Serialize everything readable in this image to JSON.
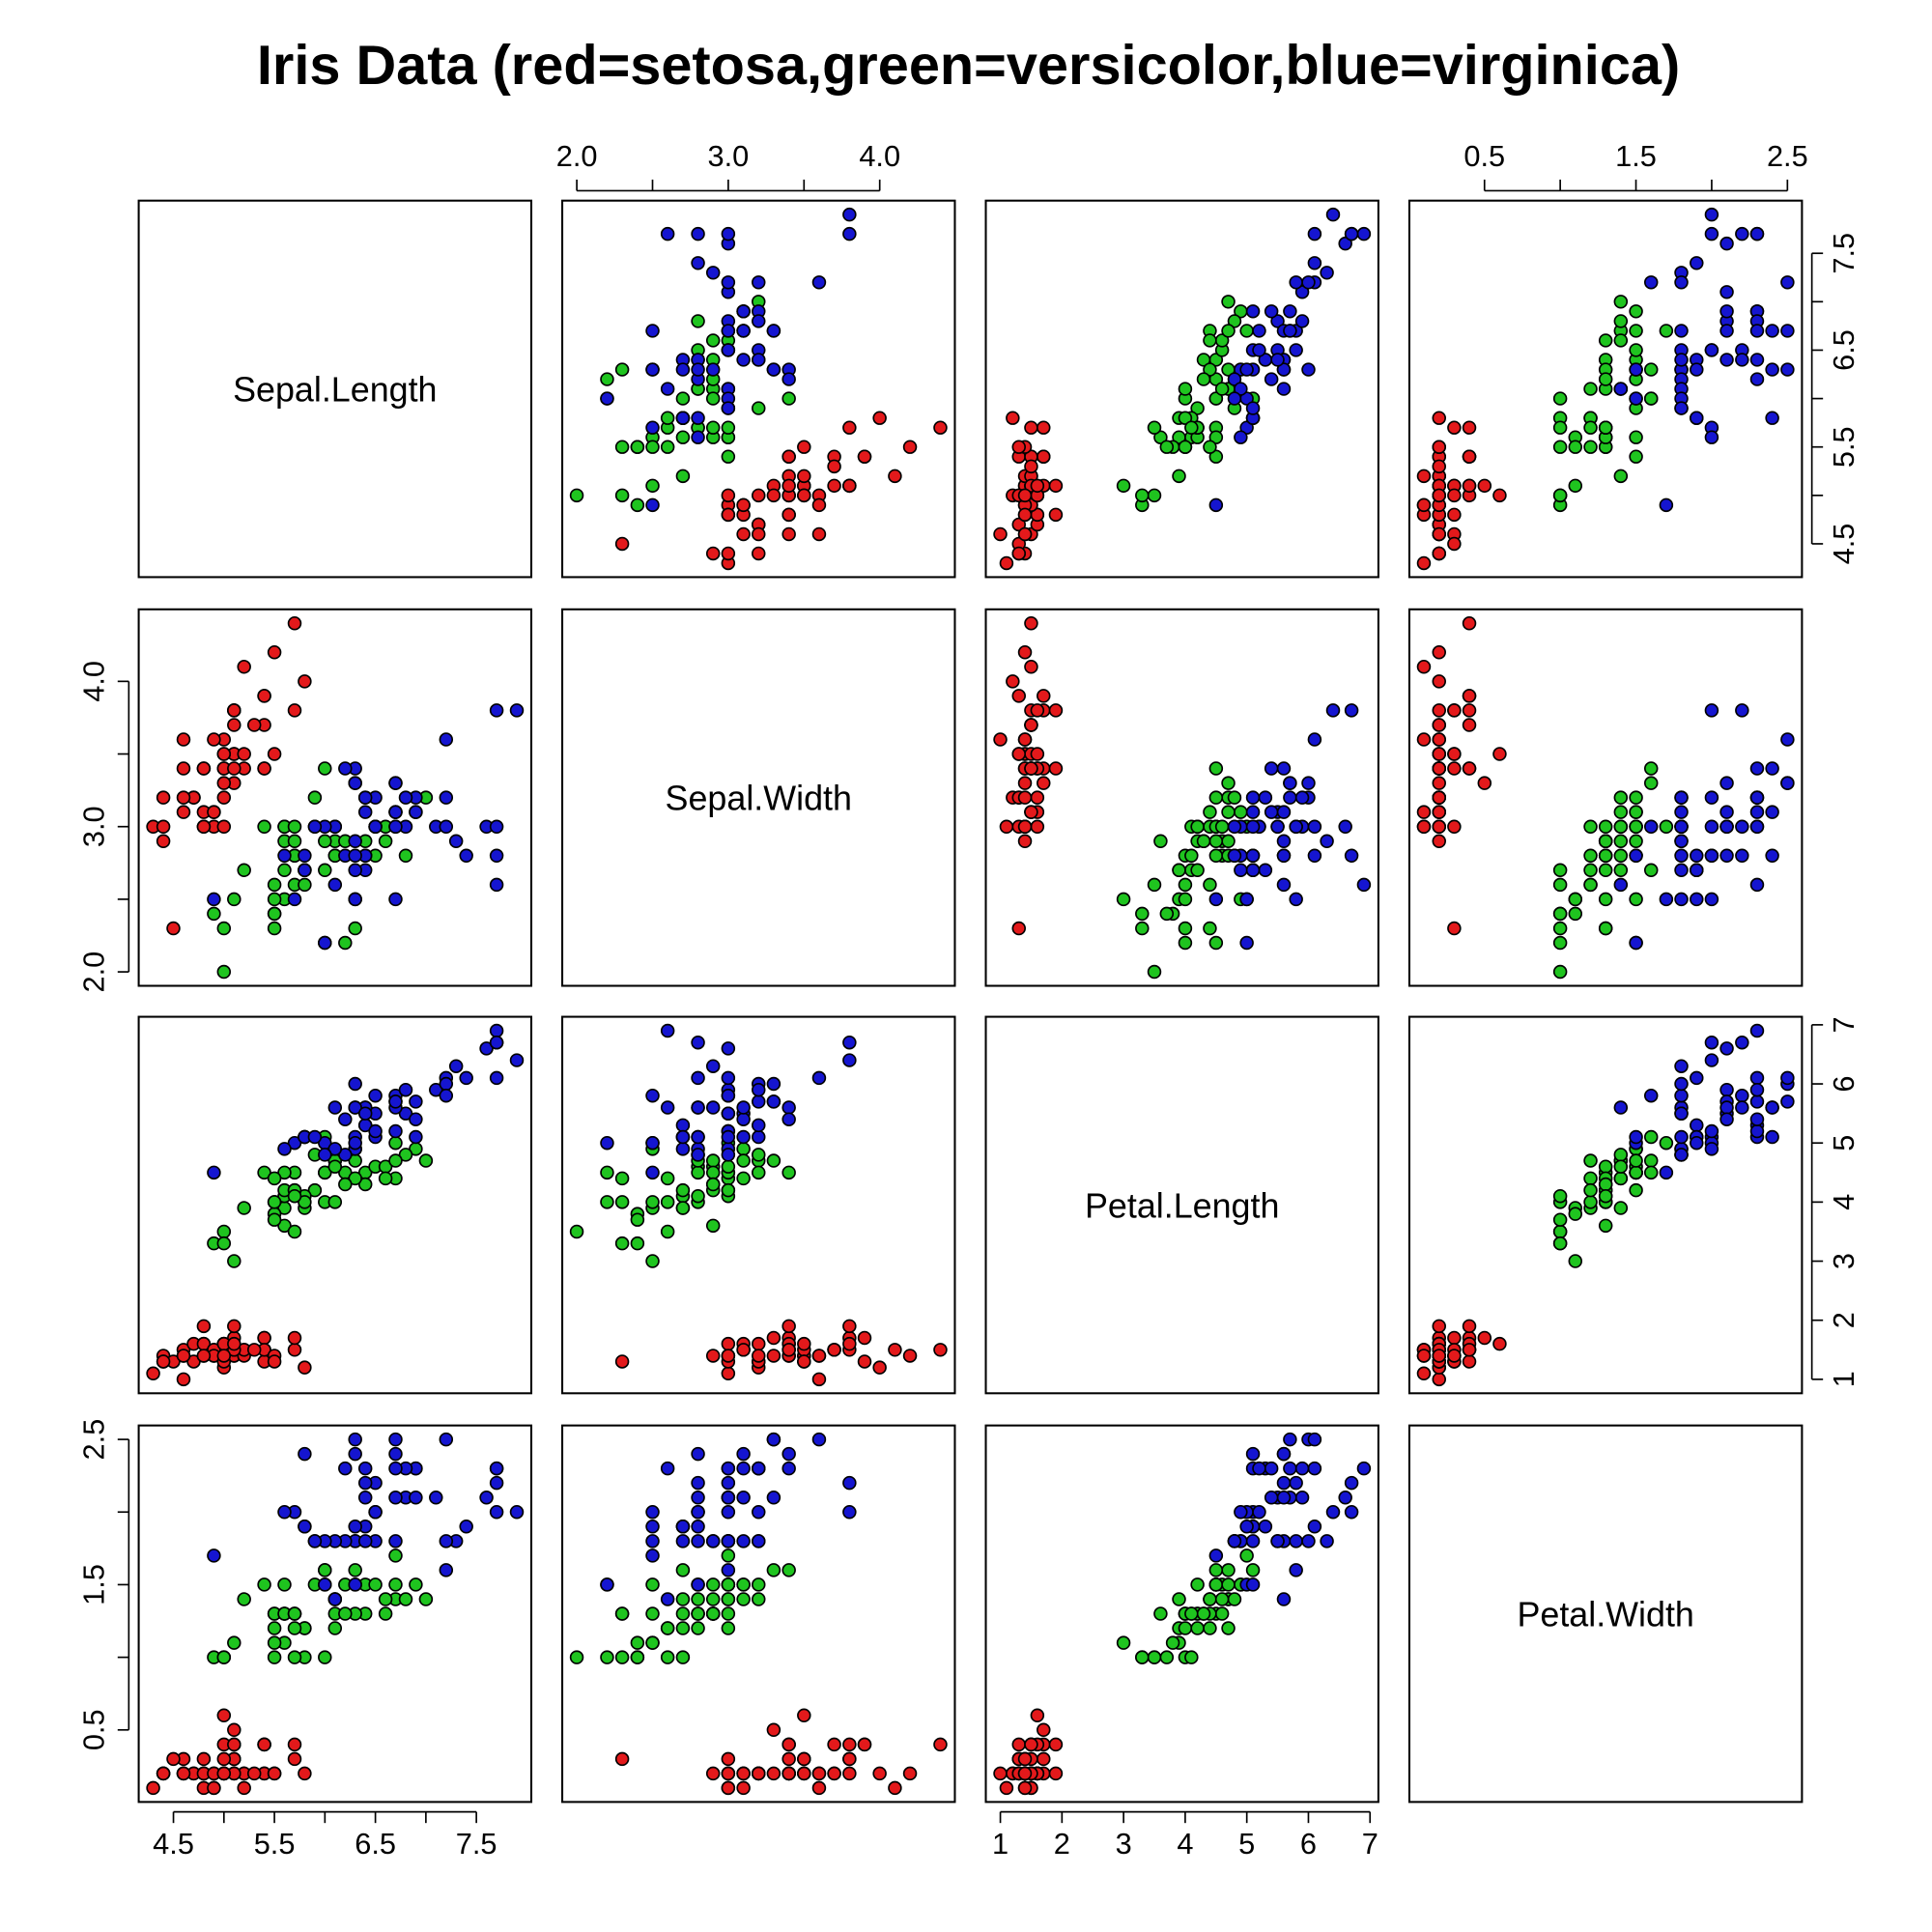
{
  "chart_data": {
    "type": "scatter",
    "subtype": "scatterplot-matrix",
    "title": "Iris Data (red=setosa,green=versicolor,blue=virginica)",
    "grid": false,
    "variables": [
      {
        "name": "Sepal.Length",
        "range": [
          4.3,
          7.9
        ],
        "ticks": [
          4.5,
          5.0,
          5.5,
          6.0,
          6.5,
          7.0,
          7.5
        ],
        "tick_labels": [
          "4.5",
          "5.5",
          "6.5",
          "7.5"
        ]
      },
      {
        "name": "Sepal.Width",
        "range": [
          2.0,
          4.4
        ],
        "ticks": [
          2.0,
          2.5,
          3.0,
          3.5,
          4.0
        ],
        "tick_labels": [
          "2.0",
          "3.0",
          "4.0"
        ]
      },
      {
        "name": "Petal.Length",
        "range": [
          1.0,
          6.9
        ],
        "ticks": [
          1,
          2,
          3,
          4,
          5,
          6,
          7
        ],
        "tick_labels": [
          "1",
          "2",
          "3",
          "4",
          "5",
          "6",
          "7"
        ]
      },
      {
        "name": "Petal.Width",
        "range": [
          0.1,
          2.5
        ],
        "ticks": [
          0.5,
          1.0,
          1.5,
          2.0,
          2.5
        ],
        "tick_labels": [
          "0.5",
          "1.5",
          "2.5"
        ]
      }
    ],
    "series": [
      {
        "name": "setosa",
        "color": "#e3191b",
        "points": [
          [
            5.1,
            3.5,
            1.4,
            0.2
          ],
          [
            4.9,
            3.0,
            1.4,
            0.2
          ],
          [
            4.7,
            3.2,
            1.3,
            0.2
          ],
          [
            4.6,
            3.1,
            1.5,
            0.2
          ],
          [
            5.0,
            3.6,
            1.4,
            0.2
          ],
          [
            5.4,
            3.9,
            1.7,
            0.4
          ],
          [
            4.6,
            3.4,
            1.4,
            0.3
          ],
          [
            5.0,
            3.4,
            1.5,
            0.2
          ],
          [
            4.4,
            2.9,
            1.4,
            0.2
          ],
          [
            4.9,
            3.1,
            1.5,
            0.1
          ],
          [
            5.4,
            3.7,
            1.5,
            0.2
          ],
          [
            4.8,
            3.4,
            1.6,
            0.2
          ],
          [
            4.8,
            3.0,
            1.4,
            0.1
          ],
          [
            4.3,
            3.0,
            1.1,
            0.1
          ],
          [
            5.8,
            4.0,
            1.2,
            0.2
          ],
          [
            5.7,
            4.4,
            1.5,
            0.4
          ],
          [
            5.4,
            3.9,
            1.3,
            0.4
          ],
          [
            5.1,
            3.5,
            1.4,
            0.3
          ],
          [
            5.7,
            3.8,
            1.7,
            0.3
          ],
          [
            5.1,
            3.8,
            1.5,
            0.3
          ],
          [
            5.4,
            3.4,
            1.7,
            0.2
          ],
          [
            5.1,
            3.7,
            1.5,
            0.4
          ],
          [
            4.6,
            3.6,
            1.0,
            0.2
          ],
          [
            5.1,
            3.3,
            1.7,
            0.5
          ],
          [
            4.8,
            3.4,
            1.9,
            0.2
          ],
          [
            5.0,
            3.0,
            1.6,
            0.2
          ],
          [
            5.0,
            3.4,
            1.6,
            0.4
          ],
          [
            5.2,
            3.5,
            1.5,
            0.2
          ],
          [
            5.2,
            3.4,
            1.4,
            0.2
          ],
          [
            4.7,
            3.2,
            1.6,
            0.2
          ],
          [
            4.8,
            3.1,
            1.6,
            0.2
          ],
          [
            5.4,
            3.4,
            1.5,
            0.4
          ],
          [
            5.2,
            4.1,
            1.5,
            0.1
          ],
          [
            5.5,
            4.2,
            1.4,
            0.2
          ],
          [
            4.9,
            3.1,
            1.5,
            0.2
          ],
          [
            5.0,
            3.2,
            1.2,
            0.2
          ],
          [
            5.5,
            3.5,
            1.3,
            0.2
          ],
          [
            4.9,
            3.6,
            1.4,
            0.1
          ],
          [
            4.4,
            3.0,
            1.3,
            0.2
          ],
          [
            5.1,
            3.4,
            1.5,
            0.2
          ],
          [
            5.0,
            3.5,
            1.3,
            0.3
          ],
          [
            4.5,
            2.3,
            1.3,
            0.3
          ],
          [
            4.4,
            3.2,
            1.3,
            0.2
          ],
          [
            5.0,
            3.5,
            1.6,
            0.6
          ],
          [
            5.1,
            3.8,
            1.9,
            0.4
          ],
          [
            4.8,
            3.0,
            1.4,
            0.3
          ],
          [
            5.1,
            3.8,
            1.6,
            0.2
          ],
          [
            4.6,
            3.2,
            1.4,
            0.2
          ],
          [
            5.3,
            3.7,
            1.5,
            0.2
          ],
          [
            5.0,
            3.3,
            1.4,
            0.2
          ]
        ]
      },
      {
        "name": "versicolor",
        "color": "#1fc41f",
        "points": [
          [
            7.0,
            3.2,
            4.7,
            1.4
          ],
          [
            6.4,
            3.2,
            4.5,
            1.5
          ],
          [
            6.9,
            3.1,
            4.9,
            1.5
          ],
          [
            5.5,
            2.3,
            4.0,
            1.3
          ],
          [
            6.5,
            2.8,
            4.6,
            1.5
          ],
          [
            5.7,
            2.8,
            4.5,
            1.3
          ],
          [
            6.3,
            3.3,
            4.7,
            1.6
          ],
          [
            4.9,
            2.4,
            3.3,
            1.0
          ],
          [
            6.6,
            2.9,
            4.6,
            1.3
          ],
          [
            5.2,
            2.7,
            3.9,
            1.4
          ],
          [
            5.0,
            2.0,
            3.5,
            1.0
          ],
          [
            5.9,
            3.0,
            4.2,
            1.5
          ],
          [
            6.0,
            2.2,
            4.0,
            1.0
          ],
          [
            6.1,
            2.9,
            4.7,
            1.4
          ],
          [
            5.6,
            2.9,
            3.6,
            1.3
          ],
          [
            6.7,
            3.1,
            4.4,
            1.4
          ],
          [
            5.6,
            3.0,
            4.5,
            1.5
          ],
          [
            5.8,
            2.7,
            4.1,
            1.0
          ],
          [
            6.2,
            2.2,
            4.5,
            1.5
          ],
          [
            5.6,
            2.5,
            3.9,
            1.1
          ],
          [
            5.9,
            3.2,
            4.8,
            1.8
          ],
          [
            6.1,
            2.8,
            4.0,
            1.3
          ],
          [
            6.3,
            2.5,
            4.9,
            1.5
          ],
          [
            6.1,
            2.8,
            4.7,
            1.2
          ],
          [
            6.4,
            2.9,
            4.3,
            1.3
          ],
          [
            6.6,
            3.0,
            4.4,
            1.4
          ],
          [
            6.8,
            2.8,
            4.8,
            1.4
          ],
          [
            6.7,
            3.0,
            5.0,
            1.7
          ],
          [
            6.0,
            2.9,
            4.5,
            1.5
          ],
          [
            5.7,
            2.6,
            3.5,
            1.0
          ],
          [
            5.5,
            2.4,
            3.8,
            1.1
          ],
          [
            5.5,
            2.4,
            3.7,
            1.0
          ],
          [
            5.8,
            2.7,
            3.9,
            1.2
          ],
          [
            6.0,
            2.7,
            5.1,
            1.6
          ],
          [
            5.4,
            3.0,
            4.5,
            1.5
          ],
          [
            6.0,
            3.4,
            4.5,
            1.6
          ],
          [
            6.7,
            3.1,
            4.7,
            1.5
          ],
          [
            6.3,
            2.3,
            4.4,
            1.3
          ],
          [
            5.6,
            3.0,
            4.1,
            1.3
          ],
          [
            5.5,
            2.5,
            4.0,
            1.3
          ],
          [
            5.5,
            2.6,
            4.4,
            1.2
          ],
          [
            6.1,
            3.0,
            4.6,
            1.4
          ],
          [
            5.8,
            2.6,
            4.0,
            1.2
          ],
          [
            5.0,
            2.3,
            3.3,
            1.0
          ],
          [
            5.6,
            2.7,
            4.2,
            1.3
          ],
          [
            5.7,
            3.0,
            4.2,
            1.2
          ],
          [
            5.7,
            2.9,
            4.2,
            1.3
          ],
          [
            6.2,
            2.9,
            4.3,
            1.3
          ],
          [
            5.1,
            2.5,
            3.0,
            1.1
          ],
          [
            5.7,
            2.8,
            4.1,
            1.3
          ]
        ]
      },
      {
        "name": "virginica",
        "color": "#1515d0",
        "points": [
          [
            6.3,
            3.3,
            6.0,
            2.5
          ],
          [
            5.8,
            2.7,
            5.1,
            1.9
          ],
          [
            7.1,
            3.0,
            5.9,
            2.1
          ],
          [
            6.3,
            2.9,
            5.6,
            1.8
          ],
          [
            6.5,
            3.0,
            5.8,
            2.2
          ],
          [
            7.6,
            3.0,
            6.6,
            2.1
          ],
          [
            4.9,
            2.5,
            4.5,
            1.7
          ],
          [
            7.3,
            2.9,
            6.3,
            1.8
          ],
          [
            6.7,
            2.5,
            5.8,
            1.8
          ],
          [
            7.2,
            3.6,
            6.1,
            2.5
          ],
          [
            6.5,
            3.2,
            5.1,
            2.0
          ],
          [
            6.4,
            2.7,
            5.3,
            1.9
          ],
          [
            6.8,
            3.0,
            5.5,
            2.1
          ],
          [
            5.7,
            2.5,
            5.0,
            2.0
          ],
          [
            5.8,
            2.8,
            5.1,
            2.4
          ],
          [
            6.4,
            3.2,
            5.3,
            2.3
          ],
          [
            6.5,
            3.0,
            5.5,
            1.8
          ],
          [
            7.7,
            3.8,
            6.7,
            2.2
          ],
          [
            7.7,
            2.6,
            6.9,
            2.3
          ],
          [
            6.0,
            2.2,
            5.0,
            1.5
          ],
          [
            6.9,
            3.2,
            5.7,
            2.3
          ],
          [
            5.6,
            2.8,
            4.9,
            2.0
          ],
          [
            7.7,
            2.8,
            6.7,
            2.0
          ],
          [
            6.3,
            2.7,
            4.9,
            1.8
          ],
          [
            6.7,
            3.3,
            5.7,
            2.1
          ],
          [
            7.2,
            3.2,
            6.0,
            1.8
          ],
          [
            6.2,
            2.8,
            4.8,
            1.8
          ],
          [
            6.1,
            3.0,
            4.9,
            1.8
          ],
          [
            6.4,
            2.8,
            5.6,
            2.1
          ],
          [
            7.2,
            3.0,
            5.8,
            1.6
          ],
          [
            7.4,
            2.8,
            6.1,
            1.9
          ],
          [
            7.9,
            3.8,
            6.4,
            2.0
          ],
          [
            6.4,
            2.8,
            5.6,
            2.2
          ],
          [
            6.3,
            2.8,
            5.1,
            1.5
          ],
          [
            6.1,
            2.6,
            5.6,
            1.4
          ],
          [
            7.7,
            3.0,
            6.1,
            2.3
          ],
          [
            6.3,
            3.4,
            5.6,
            2.4
          ],
          [
            6.4,
            3.1,
            5.5,
            1.8
          ],
          [
            6.0,
            3.0,
            4.8,
            1.8
          ],
          [
            6.9,
            3.1,
            5.4,
            2.1
          ],
          [
            6.7,
            3.1,
            5.6,
            2.4
          ],
          [
            6.9,
            3.1,
            5.1,
            2.3
          ],
          [
            5.8,
            2.7,
            5.1,
            1.9
          ],
          [
            6.8,
            3.2,
            5.9,
            2.3
          ],
          [
            6.7,
            3.3,
            5.7,
            2.5
          ],
          [
            6.7,
            3.0,
            5.2,
            2.3
          ],
          [
            6.3,
            2.5,
            5.0,
            1.9
          ],
          [
            6.5,
            3.0,
            5.2,
            2.0
          ],
          [
            6.2,
            3.4,
            5.4,
            2.3
          ],
          [
            5.9,
            3.0,
            5.1,
            1.8
          ]
        ]
      }
    ]
  }
}
